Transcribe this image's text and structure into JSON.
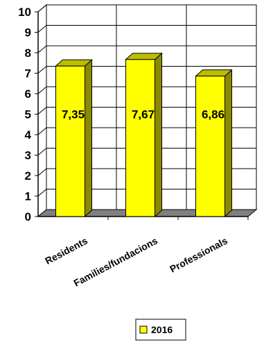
{
  "chart_data": {
    "type": "bar",
    "categories": [
      "Residents",
      "Families/fundacions",
      "Professionals"
    ],
    "series": [
      {
        "name": "2016",
        "values": [
          7.35,
          7.67,
          6.86
        ]
      }
    ],
    "value_labels": [
      "7,35",
      "7,67",
      "6,86"
    ],
    "yticks": [
      "0",
      "1",
      "2",
      "3",
      "4",
      "5",
      "6",
      "7",
      "8",
      "9",
      "10"
    ],
    "ylim": [
      0,
      10
    ],
    "grid": true,
    "legend_position": "bottom",
    "colors": {
      "bar_front": "#FFFF00",
      "bar_side": "#8A8A00",
      "bar_top": "#BDBD00",
      "wall": "#FFFFFF",
      "floor": "#808080",
      "grid": "#000000"
    }
  }
}
